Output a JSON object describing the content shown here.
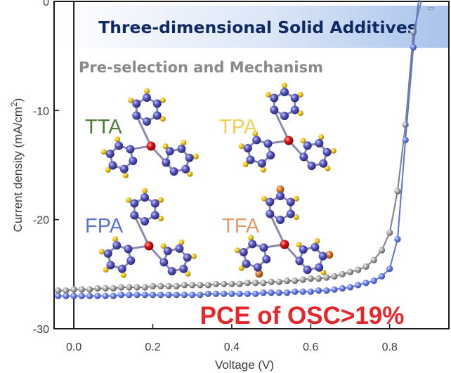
{
  "chart_data": {
    "type": "line",
    "title": "Three-dimensional Solid Additives",
    "subtitle": "Pre-selection and Mechanism",
    "xlabel": "Voltage (V)",
    "ylabel_main": "Current density (mA/cm",
    "ylabel_sup": "2",
    "ylabel_close": ")",
    "xlim": [
      -0.05,
      0.95
    ],
    "ylim": [
      -30,
      0
    ],
    "xticks": [
      {
        "value": 0.0,
        "label": "0.0"
      },
      {
        "value": 0.2,
        "label": "0.2"
      },
      {
        "value": 0.4,
        "label": "0.4"
      },
      {
        "value": 0.6,
        "label": "0.6"
      },
      {
        "value": 0.8,
        "label": "0.8"
      }
    ],
    "yticks": [
      {
        "value": 0,
        "label": "0"
      },
      {
        "value": -10,
        "label": "-10"
      },
      {
        "value": -20,
        "label": "-20"
      },
      {
        "value": -30,
        "label": "-30"
      }
    ],
    "series": [
      {
        "color": "#7f7f7f",
        "x": [
          -0.04,
          -0.02,
          0.0,
          0.02,
          0.04,
          0.06,
          0.08,
          0.1,
          0.12,
          0.14,
          0.16,
          0.18,
          0.2,
          0.22,
          0.24,
          0.26,
          0.28,
          0.3,
          0.32,
          0.34,
          0.36,
          0.38,
          0.4,
          0.42,
          0.44,
          0.46,
          0.48,
          0.5,
          0.52,
          0.54,
          0.56,
          0.58,
          0.6,
          0.62,
          0.64,
          0.66,
          0.68,
          0.7,
          0.72,
          0.74,
          0.76,
          0.78,
          0.8,
          0.82,
          0.84,
          0.86,
          0.88
        ],
        "y": [
          -26.5,
          -26.5,
          -26.4,
          -26.4,
          -26.4,
          -26.3,
          -26.3,
          -26.3,
          -26.2,
          -26.2,
          -26.2,
          -26.2,
          -26.1,
          -26.1,
          -26.1,
          -26.1,
          -26.0,
          -26.0,
          -26.0,
          -26.0,
          -25.9,
          -25.9,
          -25.9,
          -25.9,
          -25.8,
          -25.8,
          -25.8,
          -25.7,
          -25.7,
          -25.6,
          -25.6,
          -25.5,
          -25.4,
          -25.4,
          -25.3,
          -25.2,
          -25.0,
          -24.8,
          -24.6,
          -24.3,
          -23.7,
          -22.8,
          -21.2,
          -17.4,
          -11.3,
          -2.8,
          0
        ]
      },
      {
        "color": "#5b72d6",
        "x": [
          -0.04,
          -0.02,
          0.0,
          0.02,
          0.04,
          0.06,
          0.08,
          0.1,
          0.12,
          0.14,
          0.16,
          0.18,
          0.2,
          0.22,
          0.24,
          0.26,
          0.28,
          0.3,
          0.32,
          0.34,
          0.36,
          0.38,
          0.4,
          0.42,
          0.44,
          0.46,
          0.48,
          0.5,
          0.52,
          0.54,
          0.56,
          0.58,
          0.6,
          0.62,
          0.64,
          0.66,
          0.68,
          0.7,
          0.72,
          0.74,
          0.76,
          0.78,
          0.8,
          0.82,
          0.84,
          0.86,
          0.88
        ],
        "y": [
          -27.0,
          -27.0,
          -27.0,
          -27.0,
          -27.0,
          -27.0,
          -27.0,
          -27.0,
          -26.9,
          -26.9,
          -26.9,
          -26.9,
          -26.9,
          -26.9,
          -26.9,
          -26.9,
          -26.9,
          -26.9,
          -26.9,
          -26.8,
          -26.8,
          -26.8,
          -26.8,
          -26.8,
          -26.8,
          -26.8,
          -26.7,
          -26.7,
          -26.7,
          -26.7,
          -26.6,
          -26.6,
          -26.6,
          -26.5,
          -26.5,
          -26.4,
          -26.3,
          -26.2,
          -26.0,
          -25.8,
          -25.6,
          -25.2,
          -24.5,
          -21.8,
          -12.7,
          -4.2,
          2.2
        ]
      }
    ],
    "annotation": "PCE of OSC>19%",
    "molecules": [
      {
        "label": "TTA",
        "color": "#4e7a3a",
        "halogen": "#f0c419"
      },
      {
        "label": "TPA",
        "color": "#f0cf5c",
        "halogen": "#f0c419"
      },
      {
        "label": "FPA",
        "color": "#5b72d6",
        "halogen": "#f0c419"
      },
      {
        "label": "TFA",
        "color": "#e29a68",
        "halogen": "#d9782f"
      }
    ]
  }
}
